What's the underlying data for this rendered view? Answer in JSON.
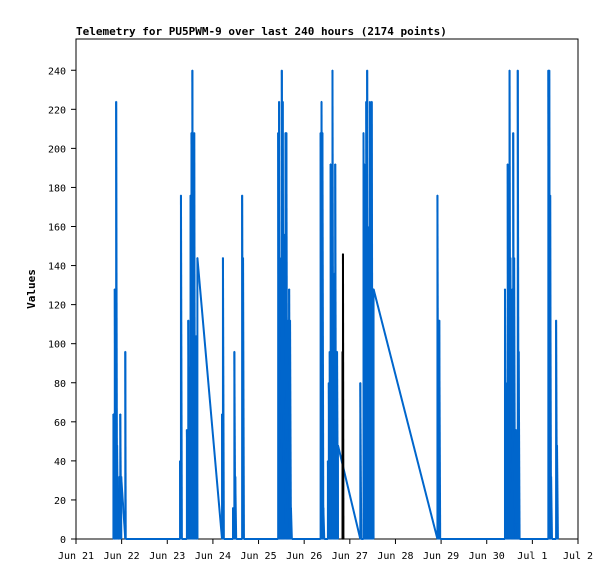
{
  "chart_data": {
    "type": "line",
    "title": "Telemetry for PU5PWM-9 over last 240 hours (2174 points)",
    "ylabel": "Values",
    "xlabel": "",
    "ylim": [
      0,
      256
    ],
    "xlim_days": [
      0,
      11
    ],
    "y_ticks": [
      0,
      20,
      40,
      60,
      80,
      100,
      120,
      140,
      160,
      180,
      200,
      220,
      240
    ],
    "x_ticks": [
      {
        "day": 0,
        "label": "Jun 21"
      },
      {
        "day": 1,
        "label": "Jun 22"
      },
      {
        "day": 2,
        "label": "Jun 23"
      },
      {
        "day": 3,
        "label": "Jun 24"
      },
      {
        "day": 4,
        "label": "Jun 25"
      },
      {
        "day": 5,
        "label": "Jun 26"
      },
      {
        "day": 6,
        "label": "Jun 27"
      },
      {
        "day": 7,
        "label": "Jun 28"
      },
      {
        "day": 8,
        "label": "Jun 29"
      },
      {
        "day": 9,
        "label": "Jun 30"
      },
      {
        "day": 10,
        "label": "Jul 1"
      },
      {
        "day": 11,
        "label": "Jul 2"
      }
    ],
    "grid": false,
    "series": [
      {
        "color": "#0066cc",
        "points": [
          [
            0.82,
            0
          ],
          [
            0.82,
            64
          ],
          [
            0.85,
            0
          ],
          [
            0.85,
            128
          ],
          [
            0.87,
            0
          ],
          [
            0.87,
            112
          ],
          [
            0.88,
            0
          ],
          [
            0.88,
            224
          ],
          [
            0.9,
            0
          ],
          [
            0.9,
            48
          ],
          [
            0.92,
            0
          ],
          [
            0.92,
            24
          ],
          [
            0.95,
            0
          ],
          [
            0.95,
            32
          ],
          [
            0.97,
            0
          ],
          [
            0.97,
            64
          ],
          [
            0.99,
            0
          ],
          [
            0.99,
            32
          ],
          [
            1.08,
            0
          ],
          [
            1.08,
            96
          ],
          [
            1.09,
            0
          ],
          [
            2.28,
            0
          ],
          [
            2.28,
            40
          ],
          [
            2.3,
            0
          ],
          [
            2.3,
            176
          ],
          [
            2.32,
            0
          ],
          [
            2.43,
            0
          ],
          [
            2.43,
            56
          ],
          [
            2.46,
            0
          ],
          [
            2.46,
            112
          ],
          [
            2.49,
            0
          ],
          [
            2.49,
            88
          ],
          [
            2.51,
            0
          ],
          [
            2.51,
            176
          ],
          [
            2.53,
            0
          ],
          [
            2.53,
            208
          ],
          [
            2.55,
            0
          ],
          [
            2.55,
            240
          ],
          [
            2.57,
            0
          ],
          [
            2.57,
            104
          ],
          [
            2.59,
            0
          ],
          [
            2.59,
            208
          ],
          [
            2.61,
            0
          ],
          [
            2.61,
            96
          ],
          [
            2.63,
            0
          ],
          [
            2.63,
            104
          ],
          [
            2.66,
            0
          ],
          [
            2.66,
            144
          ],
          [
            3.2,
            0
          ],
          [
            3.2,
            64
          ],
          [
            3.22,
            0
          ],
          [
            3.22,
            144
          ],
          [
            3.24,
            0
          ],
          [
            3.44,
            0
          ],
          [
            3.44,
            16
          ],
          [
            3.47,
            0
          ],
          [
            3.47,
            96
          ],
          [
            3.49,
            0
          ],
          [
            3.49,
            32
          ],
          [
            3.51,
            0
          ],
          [
            3.64,
            0
          ],
          [
            3.64,
            176
          ],
          [
            3.66,
            0
          ],
          [
            3.66,
            144
          ],
          [
            3.68,
            0
          ],
          [
            4.43,
            0
          ],
          [
            4.43,
            208
          ],
          [
            4.45,
            0
          ],
          [
            4.45,
            224
          ],
          [
            4.47,
            0
          ],
          [
            4.47,
            144
          ],
          [
            4.49,
            0
          ],
          [
            4.49,
            128
          ],
          [
            4.51,
            0
          ],
          [
            4.51,
            240
          ],
          [
            4.53,
            0
          ],
          [
            4.53,
            224
          ],
          [
            4.55,
            0
          ],
          [
            4.55,
            64
          ],
          [
            4.57,
            0
          ],
          [
            4.57,
            156
          ],
          [
            4.59,
            0
          ],
          [
            4.59,
            208
          ],
          [
            4.61,
            0
          ],
          [
            4.61,
            208
          ],
          [
            4.63,
            0
          ],
          [
            4.63,
            56
          ],
          [
            4.65,
            0
          ],
          [
            4.65,
            112
          ],
          [
            4.67,
            0
          ],
          [
            4.67,
            128
          ],
          [
            4.69,
            0
          ],
          [
            4.69,
            112
          ],
          [
            4.71,
            0
          ],
          [
            4.71,
            16
          ],
          [
            4.73,
            0
          ],
          [
            5.36,
            0
          ],
          [
            5.36,
            208
          ],
          [
            5.38,
            0
          ],
          [
            5.38,
            224
          ],
          [
            5.4,
            0
          ],
          [
            5.4,
            208
          ],
          [
            5.42,
            0
          ],
          [
            5.42,
            16
          ],
          [
            5.44,
            0
          ],
          [
            5.52,
            0
          ],
          [
            5.52,
            40
          ],
          [
            5.54,
            0
          ],
          [
            5.54,
            80
          ],
          [
            5.56,
            0
          ],
          [
            5.56,
            96
          ],
          [
            5.58,
            0
          ],
          [
            5.58,
            192
          ],
          [
            5.6,
            0
          ],
          [
            5.6,
            112
          ],
          [
            5.62,
            0
          ],
          [
            5.62,
            240
          ],
          [
            5.64,
            0
          ],
          [
            5.64,
            96
          ],
          [
            5.66,
            0
          ],
          [
            5.66,
            136
          ],
          [
            5.68,
            0
          ],
          [
            5.68,
            192
          ],
          [
            5.7,
            0
          ],
          [
            5.7,
            96
          ],
          [
            5.72,
            0
          ],
          [
            5.72,
            96
          ],
          [
            5.74,
            0
          ],
          [
            5.74,
            48
          ],
          [
            6.23,
            0
          ],
          [
            6.23,
            80
          ],
          [
            6.25,
            0
          ],
          [
            6.3,
            0
          ],
          [
            6.3,
            208
          ],
          [
            6.32,
            0
          ],
          [
            6.32,
            192
          ],
          [
            6.34,
            0
          ],
          [
            6.34,
            128
          ],
          [
            6.36,
            0
          ],
          [
            6.36,
            224
          ],
          [
            6.38,
            0
          ],
          [
            6.38,
            240
          ],
          [
            6.4,
            0
          ],
          [
            6.4,
            160
          ],
          [
            6.42,
            0
          ],
          [
            6.42,
            96
          ],
          [
            6.44,
            0
          ],
          [
            6.44,
            224
          ],
          [
            6.46,
            0
          ],
          [
            6.46,
            72
          ],
          [
            6.48,
            0
          ],
          [
            6.48,
            224
          ],
          [
            6.5,
            0
          ],
          [
            6.5,
            40
          ],
          [
            6.52,
            0
          ],
          [
            6.52,
            128
          ],
          [
            7.92,
            0
          ],
          [
            7.92,
            176
          ],
          [
            7.94,
            0
          ],
          [
            7.94,
            112
          ],
          [
            7.96,
            0
          ],
          [
            7.96,
            112
          ],
          [
            7.98,
            0
          ],
          [
            9.4,
            0
          ],
          [
            9.4,
            128
          ],
          [
            9.42,
            0
          ],
          [
            9.42,
            80
          ],
          [
            9.44,
            0
          ],
          [
            9.44,
            16
          ],
          [
            9.46,
            0
          ],
          [
            9.46,
            192
          ],
          [
            9.48,
            0
          ],
          [
            9.48,
            16
          ],
          [
            9.5,
            0
          ],
          [
            9.5,
            240
          ],
          [
            9.52,
            0
          ],
          [
            9.52,
            144
          ],
          [
            9.54,
            0
          ],
          [
            9.54,
            40
          ],
          [
            9.56,
            0
          ],
          [
            9.56,
            128
          ],
          [
            9.58,
            0
          ],
          [
            9.58,
            208
          ],
          [
            9.6,
            0
          ],
          [
            9.6,
            144
          ],
          [
            9.62,
            0
          ],
          [
            9.62,
            16
          ],
          [
            9.64,
            0
          ],
          [
            9.64,
            56
          ],
          [
            9.66,
            0
          ],
          [
            9.66,
            8
          ],
          [
            9.68,
            0
          ],
          [
            9.68,
            240
          ],
          [
            9.7,
            0
          ],
          [
            9.7,
            96
          ],
          [
            9.72,
            0
          ],
          [
            10.35,
            0
          ],
          [
            10.35,
            240
          ],
          [
            10.37,
            0
          ],
          [
            10.37,
            240
          ],
          [
            10.39,
            0
          ],
          [
            10.39,
            176
          ],
          [
            10.41,
            0
          ],
          [
            10.41,
            32
          ],
          [
            10.43,
            0
          ],
          [
            10.52,
            0
          ],
          [
            10.52,
            112
          ],
          [
            10.54,
            0
          ],
          [
            10.54,
            48
          ],
          [
            10.56,
            0
          ]
        ]
      },
      {
        "color": "#000000",
        "points": [
          [
            5.84,
            0
          ],
          [
            5.84,
            96
          ],
          [
            5.85,
            0
          ],
          [
            5.85,
            146
          ],
          [
            5.86,
            0
          ]
        ]
      }
    ]
  }
}
